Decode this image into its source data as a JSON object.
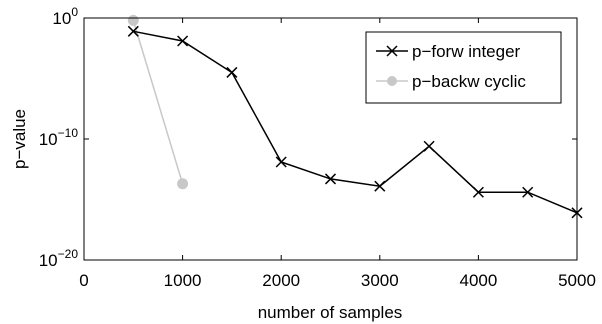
{
  "chart_data": {
    "type": "line",
    "title": "",
    "xlabel": "number of samples",
    "ylabel": "p−value",
    "xlim": [
      0,
      5000
    ],
    "ylim_log10": [
      -20,
      0
    ],
    "yscale": "log",
    "grid": false,
    "legend_position": "top-right",
    "x_ticks": [
      0,
      1000,
      2000,
      3000,
      4000,
      5000
    ],
    "y_ticks": [
      {
        "exp": 0,
        "base": "10",
        "sup": "0"
      },
      {
        "exp": -10,
        "base": "10",
        "sup": "−10"
      },
      {
        "exp": -20,
        "base": "10",
        "sup": "−20"
      }
    ],
    "series": [
      {
        "name": "p−forw integer",
        "color": "#000000",
        "marker": "x",
        "x": [
          500,
          1000,
          1500,
          2000,
          2500,
          3000,
          3500,
          4000,
          4500,
          5000
        ],
        "y_log10": [
          -1.1,
          -1.9,
          -4.5,
          -11.9,
          -13.3,
          -13.9,
          -10.6,
          -14.4,
          -14.4,
          -16.1
        ]
      },
      {
        "name": "p−backw cyclic",
        "color": "#c8c8c8",
        "marker": "o",
        "x": [
          500,
          1000
        ],
        "y_log10": [
          -0.2,
          -13.7
        ]
      }
    ]
  }
}
